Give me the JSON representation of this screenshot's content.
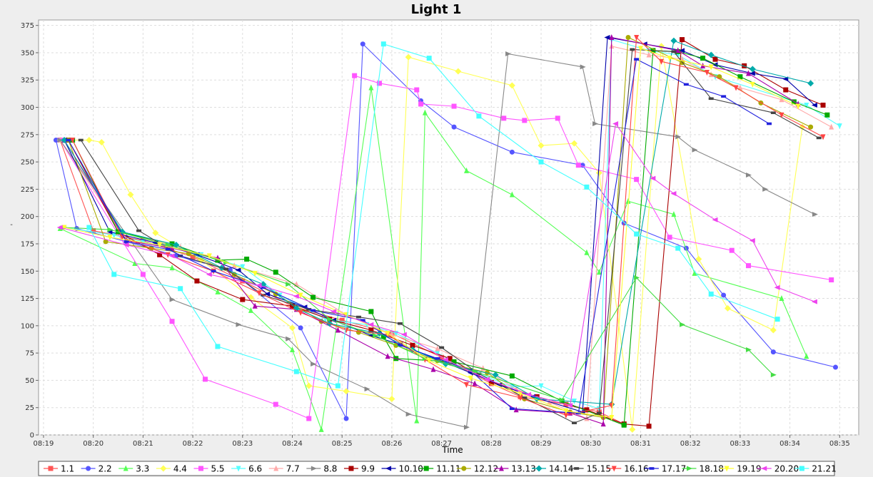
{
  "chart_data": {
    "type": "line",
    "title": "Light 1",
    "xlabel": "Time",
    "ylabel": "-",
    "ylim": [
      0,
      380
    ],
    "yticks": [
      0,
      25,
      50,
      75,
      100,
      125,
      150,
      175,
      200,
      225,
      250,
      275,
      300,
      325,
      350,
      375
    ],
    "xlim": [
      "08:19",
      "08:35"
    ],
    "xticks": [
      "08:19",
      "08:20",
      "08:21",
      "08:22",
      "08:23",
      "08:24",
      "08:25",
      "08:26",
      "08:27",
      "08:28",
      "08:29",
      "08:30",
      "08:31",
      "08:32",
      "08:33",
      "08:34",
      "08:35"
    ],
    "grid": true,
    "legend": "bottom",
    "series": [
      {
        "name": "1.1",
        "color": "#ff5555",
        "marker": "square",
        "x": [
          "08:19:20",
          "08:20:00",
          "08:21:00",
          "08:22:00",
          "08:23:00",
          "08:24:00",
          "08:25:00",
          "08:26:00",
          "08:27:00",
          "08:28:00",
          "08:28:35",
          "08:29:30",
          "08:30:10",
          "08:30:40"
        ],
        "y": [
          270,
          187,
          178,
          163,
          141,
          118,
          105,
          93,
          71,
          47,
          35,
          28,
          21,
          10
        ]
      },
      {
        "name": "2.2",
        "color": "#5555ff",
        "marker": "circle",
        "x": [
          "08:19:15",
          "08:19:40",
          "08:20:40",
          "08:21:40",
          "08:22:45",
          "08:24:10",
          "08:25:05",
          "08:25:25",
          "08:26:35",
          "08:27:15",
          "08:28:25",
          "08:29:50",
          "08:30:40",
          "08:31:55",
          "08:32:40",
          "08:33:40",
          "08:34:55"
        ],
        "y": [
          270,
          189,
          177,
          164,
          151,
          98,
          15,
          358,
          306,
          282,
          259,
          247,
          194,
          171,
          128,
          76,
          62
        ]
      },
      {
        "name": "3.3",
        "color": "#55ff55",
        "marker": "triangle-up",
        "x": [
          "08:19:20",
          "08:20:50",
          "08:21:35",
          "08:22:30",
          "08:23:10",
          "08:24:00",
          "08:24:35",
          "08:25:35",
          "08:26:30",
          "08:26:40",
          "08:27:30",
          "08:28:25",
          "08:29:55",
          "08:30:10",
          "08:30:45",
          "08:31:40",
          "08:32:05",
          "08:33:50",
          "08:34:20"
        ],
        "y": [
          189,
          157,
          153,
          131,
          114,
          78,
          5,
          318,
          13,
          295,
          242,
          220,
          167,
          149,
          214,
          202,
          148,
          125,
          72
        ]
      },
      {
        "name": "4.4",
        "color": "#ffff55",
        "marker": "diamond",
        "x": [
          "08:19:20",
          "08:19:55",
          "08:20:10",
          "08:20:45",
          "08:21:15",
          "08:22:10",
          "08:23:10",
          "08:24:00",
          "08:24:20",
          "08:25:05",
          "08:26:00",
          "08:26:20",
          "08:27:20",
          "08:28:25",
          "08:29:00",
          "08:29:40",
          "08:30:10",
          "08:30:50",
          "08:31:25",
          "08:32:10",
          "08:32:45",
          "08:33:40",
          "08:34:15"
        ],
        "y": [
          270,
          270,
          268,
          220,
          185,
          160,
          126,
          98,
          45,
          40,
          33,
          346,
          333,
          320,
          265,
          267,
          240,
          5,
          356,
          161,
          116,
          96,
          282
        ]
      },
      {
        "name": "5.5",
        "color": "#ff55ff",
        "marker": "square",
        "x": [
          "08:19:20",
          "08:21:00",
          "08:21:35",
          "08:22:15",
          "08:23:40",
          "08:24:20",
          "08:25:15",
          "08:25:45",
          "08:26:30",
          "08:26:35",
          "08:27:15",
          "08:28:15",
          "08:28:40",
          "08:29:20",
          "08:29:45",
          "08:30:55",
          "08:31:35",
          "08:32:50",
          "08:33:10",
          "08:34:50"
        ],
        "y": [
          270,
          147,
          104,
          51,
          28,
          15,
          329,
          322,
          316,
          303,
          301,
          290,
          288,
          290,
          247,
          234,
          181,
          169,
          155,
          142
        ]
      },
      {
        "name": "6.6",
        "color": "#55ffff",
        "marker": "triangle-down",
        "x": [
          "08:19:25",
          "08:20:25",
          "08:21:00",
          "08:22:10",
          "08:23:00",
          "08:23:45",
          "08:24:40",
          "08:25:30",
          "08:26:05",
          "08:26:55",
          "08:27:35",
          "08:28:25",
          "08:29:00",
          "08:29:40",
          "08:30:10",
          "08:30:25",
          "08:31:10",
          "08:31:45",
          "08:32:30",
          "08:34:20",
          "08:35:00"
        ],
        "y": [
          190,
          183,
          177,
          165,
          154,
          128,
          106,
          101,
          93,
          75,
          59,
          44,
          45,
          31,
          24,
          362,
          352,
          348,
          328,
          302,
          283
        ]
      },
      {
        "name": "7.7",
        "color": "#ffaaaa",
        "marker": "triangle-up",
        "x": [
          "08:19:20",
          "08:20:35",
          "08:21:45",
          "08:22:50",
          "08:24:05",
          "08:25:05",
          "08:26:00",
          "08:26:55",
          "08:27:50",
          "08:28:30",
          "08:29:10",
          "08:29:55",
          "08:30:25",
          "08:31:10",
          "08:31:50",
          "08:32:25",
          "08:33:00",
          "08:33:50",
          "08:34:50"
        ],
        "y": [
          270,
          185,
          172,
          155,
          138,
          110,
          92,
          79,
          61,
          42,
          30,
          15,
          356,
          348,
          344,
          330,
          318,
          307,
          282
        ]
      },
      {
        "name": "8.8",
        "color": "#888888",
        "marker": "triangle-right",
        "x": [
          "08:19:20",
          "08:21:35",
          "08:22:55",
          "08:23:55",
          "08:24:25",
          "08:25:30",
          "08:26:20",
          "08:27:30",
          "08:28:20",
          "08:29:50",
          "08:30:05",
          "08:31:45",
          "08:32:05",
          "08:33:10",
          "08:33:30",
          "08:34:30"
        ],
        "y": [
          270,
          124,
          101,
          88,
          65,
          42,
          19,
          7,
          349,
          337,
          285,
          273,
          261,
          238,
          225,
          202
        ]
      },
      {
        "name": "9.9",
        "color": "#aa0000",
        "marker": "square",
        "x": [
          "08:19:30",
          "08:20:30",
          "08:21:20",
          "08:22:05",
          "08:23:00",
          "08:24:00",
          "08:24:45",
          "08:25:35",
          "08:26:25",
          "08:27:10",
          "08:28:00",
          "08:28:55",
          "08:29:55",
          "08:30:40",
          "08:31:10",
          "08:31:50",
          "08:32:30",
          "08:33:05",
          "08:33:55",
          "08:34:40"
        ],
        "y": [
          270,
          186,
          165,
          141,
          124,
          118,
          106,
          96,
          82,
          70,
          48,
          35,
          23,
          10,
          8,
          362,
          344,
          338,
          316,
          302
        ]
      },
      {
        "name": "10.10",
        "color": "#0000aa",
        "marker": "triangle-left",
        "x": [
          "08:19:25",
          "08:20:20",
          "08:21:15",
          "08:22:05",
          "08:22:55",
          "08:23:30",
          "08:24:15",
          "08:24:50",
          "08:25:35",
          "08:26:10",
          "08:26:55",
          "08:27:35",
          "08:28:10",
          "08:28:50",
          "08:29:50",
          "08:30:20",
          "08:31:05",
          "08:31:50",
          "08:32:30",
          "08:33:15",
          "08:33:55",
          "08:34:30"
        ],
        "y": [
          270,
          186,
          176,
          165,
          151,
          129,
          117,
          105,
          91,
          83,
          69,
          57,
          46,
          35,
          21,
          364,
          358,
          352,
          339,
          331,
          326,
          302
        ]
      },
      {
        "name": "11.11",
        "color": "#00aa00",
        "marker": "square",
        "x": [
          "08:19:35",
          "08:20:30",
          "08:21:35",
          "08:22:30",
          "08:23:05",
          "08:23:40",
          "08:24:25",
          "08:25:35",
          "08:25:50",
          "08:26:05",
          "08:27:15",
          "08:28:25",
          "08:29:25",
          "08:30:40",
          "08:31:15",
          "08:31:45",
          "08:32:15",
          "08:33:00",
          "08:34:05",
          "08:34:45"
        ],
        "y": [
          270,
          186,
          175,
          160,
          161,
          149,
          126,
          113,
          90,
          70,
          67,
          54,
          31,
          9,
          352,
          351,
          345,
          328,
          305,
          293
        ]
      },
      {
        "name": "12.12",
        "color": "#aaaa00",
        "marker": "circle",
        "x": [
          "08:19:30",
          "08:20:15",
          "08:21:10",
          "08:21:55",
          "08:22:50",
          "08:23:40",
          "08:24:35",
          "08:25:20",
          "08:26:05",
          "08:26:55",
          "08:27:55",
          "08:28:40",
          "08:29:35",
          "08:30:15",
          "08:30:45",
          "08:31:50",
          "08:32:35",
          "08:33:25",
          "08:34:25"
        ],
        "y": [
          270,
          177,
          171,
          166,
          147,
          129,
          104,
          94,
          82,
          68,
          57,
          33,
          21,
          16,
          364,
          341,
          328,
          304,
          282
        ]
      },
      {
        "name": "13.13",
        "color": "#aa00aa",
        "marker": "triangle-up",
        "x": [
          "08:19:25",
          "08:20:40",
          "08:21:35",
          "08:22:30",
          "08:23:15",
          "08:24:05",
          "08:24:55",
          "08:25:55",
          "08:26:50",
          "08:27:40",
          "08:28:30",
          "08:29:35",
          "08:30:15",
          "08:30:25",
          "08:31:45",
          "08:32:15",
          "08:33:10",
          "08:34:10"
        ],
        "y": [
          270,
          178,
          171,
          162,
          118,
          115,
          96,
          72,
          60,
          47,
          23,
          20,
          10,
          364,
          352,
          338,
          331,
          303
        ]
      },
      {
        "name": "14.14",
        "color": "#00aaaa",
        "marker": "diamond",
        "x": [
          "08:19:25",
          "08:20:35",
          "08:21:40",
          "08:22:35",
          "08:23:25",
          "08:24:05",
          "08:24:45",
          "08:25:45",
          "08:26:25",
          "08:27:05",
          "08:28:05",
          "08:28:55",
          "08:30:25",
          "08:31:40",
          "08:32:25",
          "08:33:15",
          "08:34:25"
        ],
        "y": [
          270,
          186,
          174,
          153,
          138,
          116,
          102,
          93,
          78,
          65,
          55,
          33,
          28,
          361,
          348,
          335,
          322
        ]
      },
      {
        "name": "15.15",
        "color": "#444444",
        "marker": "dash",
        "x": [
          "08:19:45",
          "08:20:55",
          "08:21:45",
          "08:22:40",
          "08:23:25",
          "08:24:20",
          "08:25:20",
          "08:26:10",
          "08:27:00",
          "08:27:45",
          "08:28:40",
          "08:29:40",
          "08:30:10",
          "08:30:50",
          "08:31:40",
          "08:32:25",
          "08:33:40",
          "08:34:35"
        ],
        "y": [
          270,
          187,
          164,
          152,
          128,
          115,
          108,
          102,
          80,
          56,
          34,
          11,
          20,
          353,
          351,
          308,
          295,
          272
        ]
      },
      {
        "name": "16.16",
        "color": "#ff4444",
        "marker": "triangle-down",
        "x": [
          "08:19:35",
          "08:20:35",
          "08:21:30",
          "08:22:25",
          "08:23:20",
          "08:24:10",
          "08:25:05",
          "08:25:55",
          "08:26:40",
          "08:27:30",
          "08:28:35",
          "08:29:30",
          "08:30:25",
          "08:30:55",
          "08:31:25",
          "08:32:20",
          "08:32:55",
          "08:33:50",
          "08:34:40"
        ],
        "y": [
          270,
          181,
          165,
          150,
          130,
          112,
          96,
          92,
          69,
          46,
          34,
          18,
          27,
          364,
          342,
          332,
          318,
          293,
          273
        ]
      },
      {
        "name": "17.17",
        "color": "#2222dd",
        "marker": "dash",
        "x": [
          "08:19:30",
          "08:20:40",
          "08:21:30",
          "08:22:25",
          "08:23:25",
          "08:24:25",
          "08:25:25",
          "08:26:10",
          "08:26:55",
          "08:27:35",
          "08:28:25",
          "08:29:45",
          "08:30:55",
          "08:31:55",
          "08:32:40",
          "08:33:35"
        ],
        "y": [
          270,
          177,
          170,
          150,
          135,
          114,
          105,
          82,
          70,
          59,
          24,
          20,
          344,
          321,
          310,
          285
        ]
      },
      {
        "name": "18.18",
        "color": "#44dd44",
        "marker": "triangle-right",
        "x": [
          "08:19:25",
          "08:20:20",
          "08:21:30",
          "08:22:40",
          "08:23:55",
          "08:24:45",
          "08:25:40",
          "08:26:40",
          "08:27:40",
          "08:29:25",
          "08:30:55",
          "08:31:50",
          "08:33:10",
          "08:33:40"
        ],
        "y": [
          190,
          188,
          174,
          158,
          138,
          106,
          91,
          70,
          58,
          32,
          144,
          101,
          78,
          55
        ]
      },
      {
        "name": "19.19",
        "color": "#ffff33",
        "marker": "triangle-down",
        "x": [
          "08:19:25",
          "08:20:20",
          "08:21:20",
          "08:22:20",
          "08:23:15",
          "08:24:10",
          "08:25:05",
          "08:25:55",
          "08:26:45",
          "08:27:35",
          "08:28:35",
          "08:29:30",
          "08:30:25",
          "08:31:00",
          "08:31:35",
          "08:32:25",
          "08:33:15",
          "08:34:10"
        ],
        "y": [
          190,
          181,
          174,
          164,
          148,
          128,
          110,
          93,
          68,
          52,
          38,
          22,
          16,
          354,
          345,
          337,
          321,
          301
        ]
      },
      {
        "name": "20.20",
        "color": "#ee44ee",
        "marker": "triangle-left",
        "x": [
          "08:19:20",
          "08:20:40",
          "08:21:35",
          "08:22:20",
          "08:23:20",
          "08:24:05",
          "08:24:50",
          "08:25:35",
          "08:26:15",
          "08:27:05",
          "08:27:55",
          "08:28:45",
          "08:29:35",
          "08:30:30",
          "08:31:15",
          "08:31:40",
          "08:32:30",
          "08:33:15",
          "08:33:45",
          "08:34:30"
        ],
        "y": [
          190,
          174,
          164,
          147,
          137,
          127,
          113,
          101,
          92,
          69,
          51,
          37,
          27,
          285,
          235,
          221,
          197,
          178,
          135,
          122
        ]
      },
      {
        "name": "21.21",
        "color": "#44ffff",
        "marker": "square",
        "x": [
          "08:19:55",
          "08:20:25",
          "08:21:45",
          "08:22:30",
          "08:24:05",
          "08:24:55",
          "08:25:50",
          "08:26:45",
          "08:27:45",
          "08:29:00",
          "08:29:55",
          "08:30:55",
          "08:31:45",
          "08:32:25",
          "08:33:45"
        ],
        "y": [
          190,
          147,
          134,
          81,
          58,
          45,
          358,
          345,
          292,
          250,
          227,
          184,
          171,
          129,
          106
        ]
      }
    ]
  }
}
